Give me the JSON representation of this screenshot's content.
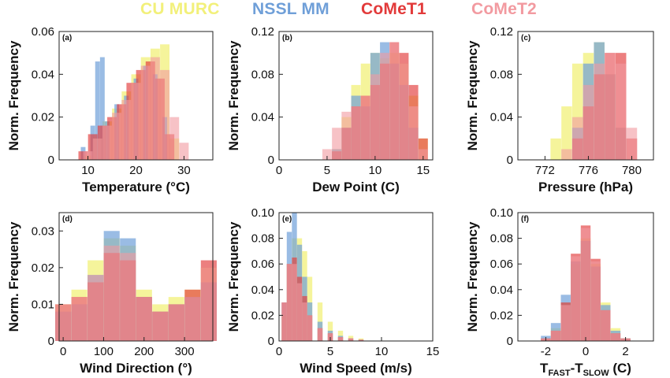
{
  "legend": [
    {
      "name": "CU MURC",
      "color": "#f2f07a"
    },
    {
      "name": "NSSL MM",
      "color": "#6f9fd8"
    },
    {
      "name": "CoMeT1",
      "color": "#e23a3a"
    },
    {
      "name": "CoMeT2",
      "color": "#f29aa0"
    }
  ],
  "chart_data": [
    {
      "type": "bar",
      "panel": "(a)",
      "xlabel": "Temperature (°C)",
      "ylabel": "Norm. Frequency",
      "xlim": [
        4,
        36
      ],
      "ylim": [
        0,
        0.06
      ],
      "xticks": [
        "10",
        "20",
        "30"
      ],
      "yticks": [
        "0",
        "0.02",
        "0.04",
        "0.06"
      ],
      "series": [
        {
          "name": "CU MURC",
          "x": [
            10,
            12,
            14,
            16,
            18,
            20,
            22,
            24,
            26,
            28
          ],
          "values": [
            0.002,
            0.01,
            0.018,
            0.024,
            0.032,
            0.04,
            0.048,
            0.052,
            0.054,
            0.01
          ]
        },
        {
          "name": "NSSL MM",
          "x": [
            9,
            11,
            12,
            13,
            14,
            16,
            18,
            20,
            22,
            24,
            26
          ],
          "values": [
            0.006,
            0.016,
            0.046,
            0.048,
            0.018,
            0.026,
            0.03,
            0.038,
            0.044,
            0.04,
            0.02
          ]
        },
        {
          "name": "CoMeT1",
          "x": [
            9,
            11,
            13,
            15,
            17,
            19,
            21,
            23,
            25,
            27
          ],
          "values": [
            0.004,
            0.012,
            0.016,
            0.02,
            0.026,
            0.036,
            0.042,
            0.046,
            0.038,
            0.012
          ]
        },
        {
          "name": "CoMeT2",
          "x": [
            10,
            12,
            14,
            16,
            18,
            20,
            22,
            24,
            26,
            28,
            30
          ],
          "values": [
            0.004,
            0.01,
            0.016,
            0.022,
            0.028,
            0.036,
            0.044,
            0.048,
            0.042,
            0.02,
            0.008
          ]
        }
      ]
    },
    {
      "type": "bar",
      "panel": "(b)",
      "xlabel": "Dew Point (C)",
      "ylabel": "Norm. Frequency",
      "xlim": [
        0,
        16
      ],
      "ylim": [
        0,
        0.12
      ],
      "xticks": [
        "0",
        "5",
        "10",
        "15"
      ],
      "yticks": [
        "0",
        "0.04",
        "0.08",
        "0.12"
      ],
      "series": [
        {
          "name": "CU MURC",
          "x": [
            6,
            7,
            8,
            9,
            10,
            11,
            12,
            13,
            14,
            15
          ],
          "values": [
            0.01,
            0.04,
            0.07,
            0.09,
            0.1,
            0.095,
            0.1,
            0.09,
            0.06,
            0.02
          ]
        },
        {
          "name": "NSSL MM",
          "x": [
            6,
            7,
            8,
            9,
            10,
            11,
            12,
            13,
            14
          ],
          "values": [
            0.01,
            0.03,
            0.06,
            0.05,
            0.1,
            0.11,
            0.09,
            0.07,
            0.03
          ]
        },
        {
          "name": "CoMeT1",
          "x": [
            6,
            7,
            8,
            9,
            10,
            11,
            12,
            13,
            14,
            15
          ],
          "values": [
            0.008,
            0.03,
            0.05,
            0.06,
            0.07,
            0.09,
            0.11,
            0.1,
            0.07,
            0.02
          ]
        },
        {
          "name": "CoMeT2",
          "x": [
            5,
            6,
            7,
            8,
            9,
            10,
            11,
            12,
            13,
            14,
            15
          ],
          "values": [
            0.01,
            0.03,
            0.045,
            0.05,
            0.06,
            0.08,
            0.1,
            0.11,
            0.09,
            0.05,
            0.01
          ]
        }
      ]
    },
    {
      "type": "bar",
      "panel": "(c)",
      "xlabel": "Pressure (hPa)",
      "ylabel": "Norm. Frequency",
      "xlim": [
        769.5,
        782
      ],
      "ylim": [
        0,
        0.12
      ],
      "xticks": [
        "772",
        "776",
        "780"
      ],
      "yticks": [
        "0",
        "0.04",
        "0.08",
        "0.12"
      ],
      "series": [
        {
          "name": "CU MURC",
          "x": [
            773,
            774,
            775,
            776,
            777,
            778,
            779
          ],
          "values": [
            0.02,
            0.05,
            0.09,
            0.1,
            0.11,
            0.08,
            0.03
          ]
        },
        {
          "name": "NSSL MM",
          "x": [
            775,
            776,
            777,
            778,
            779
          ],
          "values": [
            0.03,
            0.09,
            0.11,
            0.08,
            0.03
          ]
        },
        {
          "name": "CoMeT1",
          "x": [
            775,
            776,
            777,
            778,
            779,
            780
          ],
          "values": [
            0.02,
            0.05,
            0.08,
            0.1,
            0.1,
            0.02
          ]
        },
        {
          "name": "CoMeT2",
          "x": [
            774,
            775,
            776,
            777,
            778,
            779,
            780
          ],
          "values": [
            0.01,
            0.04,
            0.07,
            0.09,
            0.1,
            0.09,
            0.03
          ]
        }
      ]
    },
    {
      "type": "bar",
      "panel": "(d)",
      "xlabel": "Wind Direction (°)",
      "ylabel": "Norm. Frequency",
      "xlim": [
        -10,
        370
      ],
      "ylim": [
        0,
        0.035
      ],
      "xticks": [
        "0",
        "100",
        "200",
        "300"
      ],
      "yticks": [
        "0",
        "0.01",
        "0.02",
        "0.03"
      ],
      "series": [
        {
          "name": "CU MURC",
          "x": [
            0,
            40,
            80,
            120,
            160,
            200,
            240,
            280,
            320,
            360
          ],
          "values": [
            0.01,
            0.014,
            0.022,
            0.028,
            0.026,
            0.014,
            0.01,
            0.012,
            0.014,
            0.02
          ]
        },
        {
          "name": "NSSL MM",
          "x": [
            0,
            40,
            80,
            120,
            160,
            200,
            240,
            280,
            320,
            360
          ],
          "values": [
            0.008,
            0.01,
            0.018,
            0.03,
            0.028,
            0.012,
            0.008,
            0.01,
            0.012,
            0.016
          ]
        },
        {
          "name": "CoMeT1",
          "x": [
            0,
            40,
            80,
            120,
            160,
            200,
            240,
            280,
            320,
            360
          ],
          "values": [
            0.01,
            0.012,
            0.016,
            0.024,
            0.022,
            0.012,
            0.008,
            0.01,
            0.014,
            0.022
          ]
        },
        {
          "name": "CoMeT2",
          "x": [
            0,
            40,
            80,
            120,
            160,
            200,
            240,
            280,
            320,
            360
          ],
          "values": [
            0.01,
            0.012,
            0.018,
            0.026,
            0.024,
            0.012,
            0.008,
            0.01,
            0.012,
            0.02
          ]
        }
      ]
    },
    {
      "type": "bar",
      "panel": "(e)",
      "xlabel": "Wind Speed (m/s)",
      "ylabel": "Norm. Frequency",
      "xlim": [
        0,
        15
      ],
      "ylim": [
        0,
        0.1
      ],
      "xticks": [
        "0",
        "5",
        "10",
        "15"
      ],
      "yticks": [
        "0",
        "0.02",
        "0.04",
        "0.06",
        "0.08",
        "0.10"
      ],
      "series": [
        {
          "name": "CU MURC",
          "x": [
            0.5,
            1,
            1.5,
            2,
            2.5,
            3,
            4,
            5,
            6,
            7,
            8
          ],
          "values": [
            0.02,
            0.06,
            0.08,
            0.08,
            0.07,
            0.05,
            0.03,
            0.015,
            0.008,
            0.004,
            0.002
          ]
        },
        {
          "name": "NSSL MM",
          "x": [
            0.5,
            1,
            1.5,
            2,
            2.5,
            3,
            4,
            5,
            6,
            7,
            8
          ],
          "values": [
            0.03,
            0.085,
            0.1,
            0.075,
            0.05,
            0.03,
            0.015,
            0.008,
            0.004,
            0.002,
            0.001
          ]
        },
        {
          "name": "CoMeT1",
          "x": [
            0.5,
            1,
            1.5,
            2,
            2.5,
            3,
            4,
            5,
            6,
            7,
            8
          ],
          "values": [
            0.03,
            0.06,
            0.065,
            0.05,
            0.035,
            0.02,
            0.01,
            0.006,
            0.003,
            0.002,
            0.001
          ]
        },
        {
          "name": "CoMeT2",
          "x": [
            0.5,
            1,
            1.5,
            2,
            2.5,
            3,
            4,
            5,
            6,
            7,
            8
          ],
          "values": [
            0.03,
            0.06,
            0.06,
            0.045,
            0.03,
            0.02,
            0.01,
            0.006,
            0.003,
            0.002,
            0.001
          ]
        }
      ]
    },
    {
      "type": "bar",
      "panel": "(f)",
      "xlabel": "T_FAST - T_SLOW (C)",
      "ylabel": "Norm. Frequency",
      "xlim": [
        -3.4,
        3.4
      ],
      "ylim": [
        0,
        0.1
      ],
      "xticks": [
        "-2",
        "0",
        "2"
      ],
      "yticks": [
        "0",
        "0.02",
        "0.04",
        "0.06",
        "0.08",
        "0.10"
      ],
      "series": [
        {
          "name": "CU MURC",
          "x": [
            -2,
            -1.5,
            -1,
            -0.5,
            0,
            0.5,
            1,
            1.5,
            2
          ],
          "values": [
            0.002,
            0.01,
            0.03,
            0.06,
            0.08,
            0.06,
            0.03,
            0.01,
            0.002
          ]
        },
        {
          "name": "NSSL MM",
          "x": [
            -2,
            -1.5,
            -1,
            -0.5,
            0,
            0.5,
            1,
            1.5,
            2
          ],
          "values": [
            0.004,
            0.014,
            0.036,
            0.062,
            0.078,
            0.058,
            0.028,
            0.008,
            0.002
          ]
        },
        {
          "name": "CoMeT1",
          "x": [
            -2,
            -1.5,
            -1,
            -0.5,
            0,
            0.5,
            1,
            1.5,
            2
          ],
          "values": [
            0.002,
            0.008,
            0.03,
            0.068,
            0.09,
            0.064,
            0.024,
            0.006,
            0.002
          ]
        },
        {
          "name": "CoMeT2",
          "x": [
            -2,
            -1.5,
            -1,
            -0.5,
            0,
            0.5,
            1,
            1.5,
            2
          ],
          "values": [
            0.002,
            0.008,
            0.028,
            0.066,
            0.088,
            0.062,
            0.024,
            0.006,
            0.002
          ]
        }
      ]
    }
  ]
}
